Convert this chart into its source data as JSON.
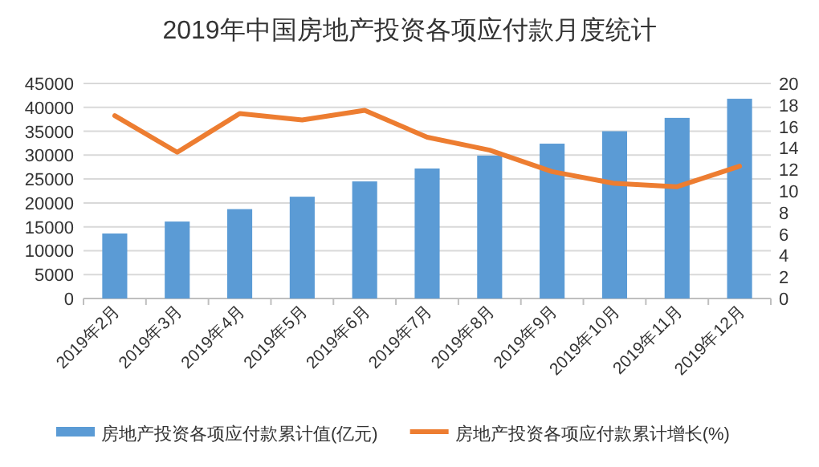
{
  "chart_data": {
    "type": "bar",
    "title": "2019年中国房地产投资各项应付款月度统计",
    "categories": [
      "2019年2月",
      "2019年3月",
      "2019年4月",
      "2019年5月",
      "2019年6月",
      "2019年7月",
      "2019年8月",
      "2019年9月",
      "2019年10月",
      "2019年11月",
      "2019年12月"
    ],
    "series": [
      {
        "name": "房地产投资各项应付款累计值(亿元)",
        "axis": "y",
        "color": "#5b9bd5",
        "values": [
          13600,
          16100,
          18700,
          21300,
          24500,
          27200,
          29900,
          32400,
          35000,
          37800,
          41800
        ]
      },
      {
        "name": "房地产投资各项应付款累计增长(%)",
        "type": "line",
        "axis": "y2",
        "color": "#ed7d31",
        "values": [
          17.0,
          13.6,
          17.2,
          16.6,
          17.5,
          15.0,
          13.8,
          11.8,
          10.7,
          10.4,
          12.3
        ]
      }
    ],
    "ylim": [
      0,
      45000
    ],
    "yticks": [
      0,
      5000,
      10000,
      15000,
      20000,
      25000,
      30000,
      35000,
      40000,
      45000
    ],
    "y2lim": [
      0,
      20
    ],
    "y2ticks": [
      0,
      2,
      4,
      6,
      8,
      10,
      12,
      14,
      16,
      18,
      20
    ],
    "grid": "y",
    "legend": "bottom"
  }
}
